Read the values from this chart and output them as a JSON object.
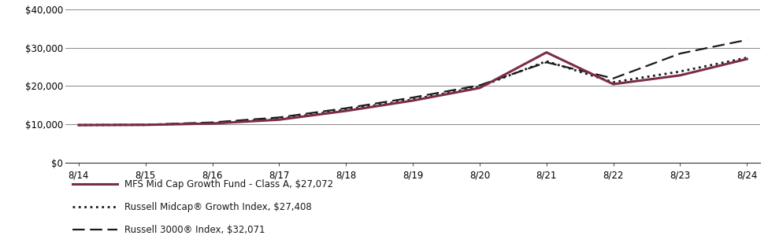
{
  "x_labels": [
    "8/14",
    "8/15",
    "8/16",
    "8/17",
    "8/18",
    "8/19",
    "8/20",
    "8/21",
    "8/22",
    "8/23",
    "8/24"
  ],
  "x_positions": [
    0,
    1,
    2,
    3,
    4,
    5,
    6,
    7,
    8,
    9,
    10
  ],
  "mfs_values": [
    9800,
    9850,
    10200,
    11200,
    13500,
    16200,
    19500,
    28800,
    20500,
    22800,
    27072
  ],
  "russell_midcap_values": [
    9800,
    9850,
    10300,
    11400,
    13800,
    16500,
    19800,
    26500,
    21000,
    23800,
    27408
  ],
  "russell_3000_values": [
    9800,
    9900,
    10500,
    11800,
    14200,
    17000,
    20200,
    26200,
    22000,
    28500,
    32071
  ],
  "mfs_color": "#7B2D42",
  "dotted_color": "#1a1a1a",
  "dashed_color": "#1a1a1a",
  "ylim": [
    0,
    40000
  ],
  "yticks": [
    0,
    10000,
    20000,
    30000,
    40000
  ],
  "ytick_labels": [
    "$0",
    "$10,000",
    "$20,000",
    "$30,000",
    "$40,000"
  ],
  "legend_mfs": "MFS Mid Cap Growth Fund - Class A, $27,072",
  "legend_midcap": "Russell Midcap® Growth Index, $27,408",
  "legend_3000": "Russell 3000® Index, $32,071",
  "grid_color": "#888888",
  "background_color": "#ffffff",
  "tick_fontsize": 8.5,
  "legend_fontsize": 8.5
}
